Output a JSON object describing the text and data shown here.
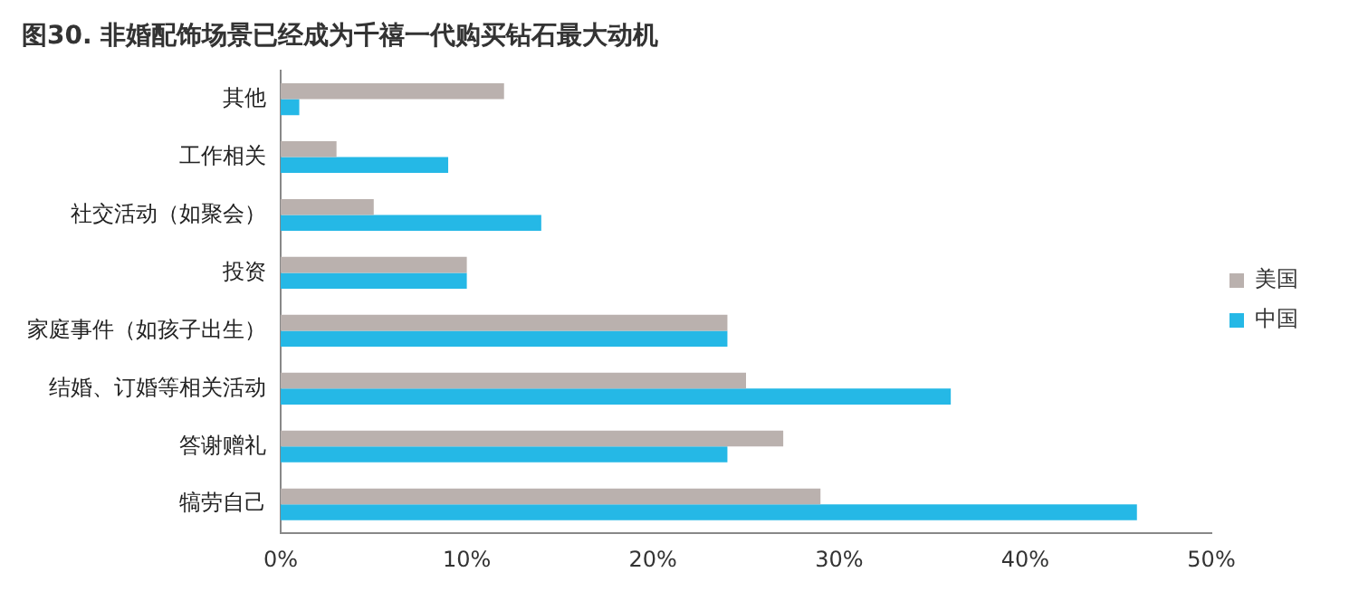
{
  "chart_data": {
    "type": "bar",
    "orientation": "horizontal",
    "title": "图30. 非婚配饰场景已经成为千禧一代购买钻石最大动机",
    "categories": [
      "其他",
      "工作相关",
      "社交活动（如聚会）",
      "投资",
      "家庭事件（如孩子出生）",
      "结婚、订婚等相关活动",
      "答谢赠礼",
      "犒劳自己"
    ],
    "series": [
      {
        "name": "美国",
        "color": "#bab1ae",
        "values": [
          12,
          3,
          5,
          10,
          24,
          25,
          27,
          29
        ]
      },
      {
        "name": "中国",
        "color": "#25b8e6",
        "values": [
          1,
          9,
          14,
          10,
          24,
          36,
          24,
          46
        ]
      }
    ],
    "xlim": [
      0,
      50
    ],
    "xticks": [
      {
        "value": 0,
        "label": "0%"
      },
      {
        "value": 10,
        "label": "10%"
      },
      {
        "value": 20,
        "label": "20%"
      },
      {
        "value": 30,
        "label": "30%"
      },
      {
        "value": 40,
        "label": "40%"
      },
      {
        "value": 50,
        "label": "50%"
      }
    ],
    "grid": false,
    "legend": "right"
  }
}
